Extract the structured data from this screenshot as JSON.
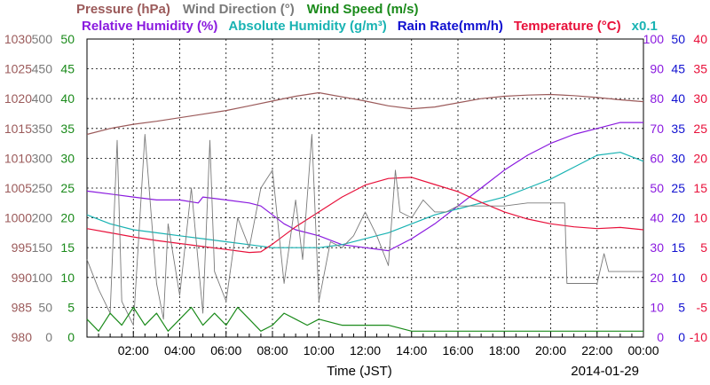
{
  "legend_line1": [
    {
      "text": "Pressure (hPa)",
      "color": "#9b5a5a"
    },
    {
      "text": "Wind Direction (°)",
      "color": "#7a7a7a"
    },
    {
      "text": "Wind Speed (m/s)",
      "color": "#1a8a1a"
    }
  ],
  "legend_line2": [
    {
      "text": "Relative Humidity (%)",
      "color": "#8a1adf"
    },
    {
      "text": "Absolute Humidity (g/m³)",
      "color": "#19b3b3"
    },
    {
      "text": "Rain Rate(mm/h)",
      "color": "#1010d0"
    },
    {
      "text": "Temperature (°C)",
      "color": "#e8103a"
    },
    {
      "text": "x0.1",
      "color": "#19b3b3"
    }
  ],
  "footer": {
    "xlabel": "Time (JST)",
    "date": "2014-01-29"
  },
  "chart_data": {
    "type": "line",
    "xlabel": "Time (JST)",
    "date": "2014-01-29",
    "x_tick_labels": [
      "02:00",
      "04:00",
      "06:00",
      "08:00",
      "10:00",
      "12:00",
      "14:00",
      "16:00",
      "18:00",
      "20:00",
      "22:00",
      "00:00"
    ],
    "x_range_hours": [
      0,
      24
    ],
    "grid": true,
    "axes": [
      {
        "name": "Pressure (hPa)",
        "side": "left",
        "color": "#9b5a5a",
        "range": [
          980,
          1030
        ],
        "ticks": [
          "980",
          "985",
          "990",
          "995",
          "1000",
          "1005",
          "1010",
          "1015",
          "1020",
          "1025",
          "1030"
        ]
      },
      {
        "name": "Wind Direction (°)",
        "side": "left",
        "color": "#7a7a7a",
        "range": [
          0,
          500
        ],
        "ticks": [
          "0",
          "50",
          "100",
          "150",
          "200",
          "250",
          "300",
          "350",
          "400",
          "450",
          "500"
        ]
      },
      {
        "name": "Wind Speed (m/s)",
        "side": "left",
        "color": "#1a8a1a",
        "range": [
          0,
          50
        ],
        "ticks": [
          "0",
          "5",
          "10",
          "15",
          "20",
          "25",
          "30",
          "35",
          "40",
          "45",
          "50"
        ]
      },
      {
        "name": "Relative Humidity (%)",
        "side": "right",
        "color": "#8a1adf",
        "range": [
          0,
          100
        ],
        "ticks": [
          "0",
          "10",
          "20",
          "30",
          "40",
          "50",
          "60",
          "70",
          "80",
          "90",
          "100"
        ]
      },
      {
        "name": "Rain Rate(mm/h)",
        "side": "right",
        "color": "#1010d0",
        "range": [
          0,
          50
        ],
        "ticks": [
          "0",
          "5",
          "10",
          "15",
          "20",
          "25",
          "30",
          "35",
          "40",
          "45",
          "50"
        ]
      },
      {
        "name": "Temperature (°C)",
        "side": "right",
        "color": "#e8103a",
        "range": [
          -10,
          40
        ],
        "ticks": [
          "-10",
          "-5",
          "0",
          "5",
          "10",
          "15",
          "20",
          "25",
          "30",
          "35",
          "40"
        ]
      }
    ],
    "series": [
      {
        "name": "Pressure (hPa)",
        "color": "#9b5a5a",
        "axis": 0,
        "x": [
          0,
          1,
          2,
          3,
          4,
          5,
          6,
          7,
          8,
          9,
          10,
          11,
          12,
          13,
          14,
          15,
          16,
          17,
          18,
          19,
          20,
          21,
          22,
          23,
          24
        ],
        "y": [
          1014,
          1015,
          1015.7,
          1016.2,
          1016.8,
          1017.4,
          1018,
          1018.8,
          1019.6,
          1020.4,
          1021,
          1020.3,
          1019.6,
          1018.8,
          1018.3,
          1018.6,
          1019.3,
          1020,
          1020.4,
          1020.6,
          1020.7,
          1020.5,
          1020.2,
          1019.8,
          1019.5
        ]
      },
      {
        "name": "Relative Humidity (%)",
        "color": "#8a1adf",
        "axis": 3,
        "x": [
          0,
          1,
          2,
          3,
          4,
          4.8,
          5,
          6,
          7,
          7.5,
          8,
          8.5,
          9,
          10,
          11,
          12,
          13,
          14,
          15,
          16,
          17,
          18,
          19,
          20,
          21,
          22,
          23,
          24
        ],
        "y": [
          49,
          48,
          47,
          46,
          46,
          45,
          47,
          46,
          45,
          44,
          41,
          38,
          36,
          34,
          31,
          30,
          29,
          33,
          38,
          44,
          50,
          56,
          61,
          65,
          68,
          70,
          72,
          72
        ]
      },
      {
        "name": "Absolute Humidity (g/m³)",
        "color": "#19b3b3",
        "axis": 3,
        "x": [
          0,
          1,
          2,
          3,
          4,
          5,
          6,
          7,
          8,
          9,
          10,
          11,
          12,
          13,
          14,
          15,
          16,
          17,
          18,
          19,
          20,
          21,
          22,
          23,
          24
        ],
        "y": [
          41,
          38,
          36,
          35,
          34,
          33,
          32,
          31,
          30,
          30,
          30,
          31,
          33,
          35,
          38,
          41,
          43,
          45,
          47,
          50,
          53,
          57,
          61,
          62,
          59
        ]
      },
      {
        "name": "Temperature (°C)",
        "color": "#e8103a",
        "axis": 5,
        "x": [
          0,
          1,
          2,
          3,
          4,
          5,
          6,
          7,
          7.5,
          8,
          9,
          10,
          11,
          12,
          13,
          14,
          15,
          16,
          17,
          18,
          19,
          20,
          21,
          22,
          23,
          24
        ],
        "y": [
          8.2,
          7.5,
          6.8,
          6.2,
          5.7,
          5.2,
          4.7,
          4.2,
          4.3,
          5.6,
          8.5,
          11.0,
          13.5,
          15.5,
          16.6,
          16.8,
          15.6,
          14.4,
          12.6,
          11.0,
          9.8,
          9.0,
          8.5,
          8.2,
          8.4,
          8.0
        ]
      },
      {
        "name": "Wind Direction (°)",
        "color": "#7a7a7a",
        "axis": 1,
        "x": [
          0,
          0.5,
          1,
          1.3,
          1.5,
          2,
          2.5,
          3,
          3.3,
          3.5,
          4,
          4.5,
          5,
          5.3,
          5.5,
          6,
          6.5,
          7,
          7.5,
          8,
          8.5,
          9,
          9.3,
          9.7,
          10,
          10.5,
          11,
          11.5,
          12,
          12.5,
          13,
          13.3,
          13.5,
          14,
          14.5,
          15,
          15.5,
          16,
          17,
          18,
          19,
          20,
          20.6,
          20.7,
          21,
          21.5,
          22,
          22.3,
          22.5,
          23,
          24
        ],
        "y": [
          130,
          80,
          40,
          330,
          60,
          20,
          340,
          90,
          30,
          190,
          70,
          250,
          40,
          330,
          110,
          60,
          200,
          150,
          250,
          280,
          90,
          230,
          130,
          340,
          60,
          160,
          150,
          170,
          210,
          170,
          120,
          280,
          210,
          200,
          230,
          210,
          210,
          220,
          220,
          220,
          225,
          225,
          225,
          90,
          90,
          90,
          90,
          140,
          110,
          110,
          110
        ]
      },
      {
        "name": "Wind Speed (m/s)",
        "color": "#1a8a1a",
        "axis": 2,
        "x": [
          0,
          0.5,
          1,
          1.5,
          2,
          2.5,
          3,
          3.5,
          4,
          4.5,
          5,
          5.5,
          6,
          6.5,
          7,
          7.5,
          8,
          8.5,
          9,
          9.5,
          10,
          11,
          12,
          13,
          14,
          15,
          16,
          17,
          18,
          19,
          20,
          21,
          22,
          23,
          24
        ],
        "y": [
          3,
          1,
          4,
          2,
          5,
          2,
          4,
          1,
          3,
          5,
          2,
          4,
          2,
          5,
          3,
          1,
          2,
          4,
          3,
          2,
          3,
          2,
          2,
          2,
          1,
          1,
          1,
          1,
          1,
          1,
          1,
          1,
          1,
          1,
          1
        ]
      }
    ]
  }
}
